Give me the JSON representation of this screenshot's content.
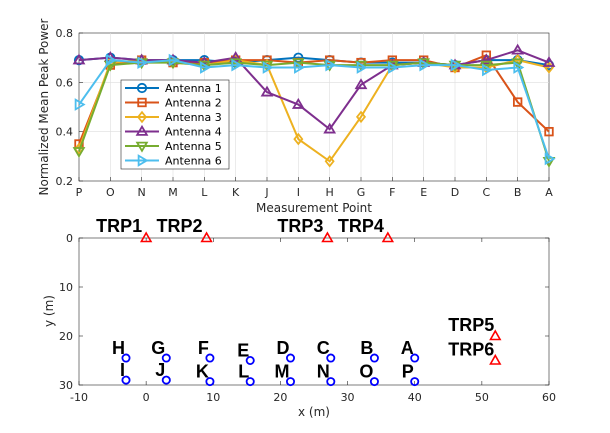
{
  "chart_data": [
    {
      "type": "line",
      "title": "",
      "xlabel": "Measurement Point",
      "ylabel": "Normalized Mean Peak Power",
      "categories": [
        "P",
        "O",
        "N",
        "M",
        "L",
        "K",
        "J",
        "I",
        "H",
        "G",
        "F",
        "E",
        "D",
        "C",
        "B",
        "A"
      ],
      "ylim": [
        0.2,
        0.8
      ],
      "yticks": [
        0.2,
        0.4,
        0.6,
        0.8
      ],
      "ytick_labels": [
        "0.2",
        "0.4",
        "0.6",
        "0.8"
      ],
      "grid": true,
      "legend_position": "center-left",
      "series": [
        {
          "name": "Antenna 1",
          "color": "#0072BD",
          "marker": "circle",
          "values": [
            0.69,
            0.7,
            0.69,
            0.69,
            0.69,
            0.68,
            0.69,
            0.7,
            0.69,
            0.68,
            0.68,
            0.68,
            0.67,
            0.69,
            0.69,
            0.67
          ]
        },
        {
          "name": "Antenna 2",
          "color": "#D95319",
          "marker": "square",
          "values": [
            0.35,
            0.67,
            0.69,
            0.68,
            0.68,
            0.69,
            0.69,
            0.68,
            0.69,
            0.68,
            0.69,
            0.69,
            0.66,
            0.71,
            0.52,
            0.4
          ]
        },
        {
          "name": "Antenna 3",
          "color": "#EDB120",
          "marker": "diamond",
          "values": [
            0.33,
            0.68,
            0.69,
            0.68,
            0.67,
            0.69,
            0.67,
            0.37,
            0.28,
            0.46,
            0.67,
            0.68,
            0.66,
            0.66,
            0.69,
            0.66
          ]
        },
        {
          "name": "Antenna 4",
          "color": "#7E2F8E",
          "marker": "triangle-up",
          "values": [
            0.69,
            0.7,
            0.69,
            0.69,
            0.68,
            0.7,
            0.56,
            0.51,
            0.41,
            0.59,
            0.67,
            0.68,
            0.67,
            0.69,
            0.73,
            0.68
          ]
        },
        {
          "name": "Antenna 5",
          "color": "#77AC30",
          "marker": "triangle-down",
          "values": [
            0.32,
            0.67,
            0.68,
            0.68,
            0.67,
            0.68,
            0.67,
            0.68,
            0.67,
            0.67,
            0.67,
            0.68,
            0.67,
            0.67,
            0.68,
            0.28
          ]
        },
        {
          "name": "Antenna 6",
          "color": "#4DBEEE",
          "marker": "triangle-right",
          "values": [
            0.51,
            0.69,
            0.68,
            0.69,
            0.66,
            0.67,
            0.66,
            0.66,
            0.67,
            0.66,
            0.66,
            0.67,
            0.67,
            0.65,
            0.66,
            0.29
          ]
        }
      ]
    },
    {
      "type": "scatter",
      "title": "",
      "xlabel": "x (m)",
      "ylabel": "y (m)",
      "xlim": [
        -10,
        60
      ],
      "ylim": [
        30,
        0
      ],
      "xticks": [
        -10,
        0,
        10,
        20,
        30,
        40,
        50,
        60
      ],
      "xtick_labels": [
        "-10",
        "0",
        "10",
        "20",
        "30",
        "40",
        "50",
        "60"
      ],
      "yticks": [
        0,
        10,
        20,
        30
      ],
      "ytick_labels": [
        "0",
        "10",
        "20",
        "30"
      ],
      "y_reversed": true,
      "trp_color": "#FF0000",
      "point_color": "#0000FF",
      "trps": [
        {
          "label": "TRP1",
          "x": 0,
          "y": 0
        },
        {
          "label": "TRP2",
          "x": 9,
          "y": 0
        },
        {
          "label": "TRP3",
          "x": 27,
          "y": 0
        },
        {
          "label": "TRP4",
          "x": 36,
          "y": 0
        },
        {
          "label": "TRP5",
          "x": 52,
          "y": 20
        },
        {
          "label": "TRP6",
          "x": 52,
          "y": 25
        }
      ],
      "points": [
        {
          "label": "H",
          "x": -3,
          "y": 24.5
        },
        {
          "label": "I",
          "x": -3,
          "y": 29
        },
        {
          "label": "G",
          "x": 3,
          "y": 24.5
        },
        {
          "label": "J",
          "x": 3,
          "y": 29
        },
        {
          "label": "F",
          "x": 9.5,
          "y": 24.5
        },
        {
          "label": "K",
          "x": 9.5,
          "y": 29.3
        },
        {
          "label": "E",
          "x": 15.5,
          "y": 25
        },
        {
          "label": "L",
          "x": 15.5,
          "y": 29.3
        },
        {
          "label": "D",
          "x": 21.5,
          "y": 24.5
        },
        {
          "label": "M",
          "x": 21.5,
          "y": 29.3
        },
        {
          "label": "C",
          "x": 27.5,
          "y": 24.5
        },
        {
          "label": "N",
          "x": 27.5,
          "y": 29.3
        },
        {
          "label": "B",
          "x": 34,
          "y": 24.5
        },
        {
          "label": "O",
          "x": 34,
          "y": 29.3
        },
        {
          "label": "A",
          "x": 40,
          "y": 24.5
        },
        {
          "label": "P",
          "x": 40,
          "y": 29.3
        }
      ]
    }
  ]
}
